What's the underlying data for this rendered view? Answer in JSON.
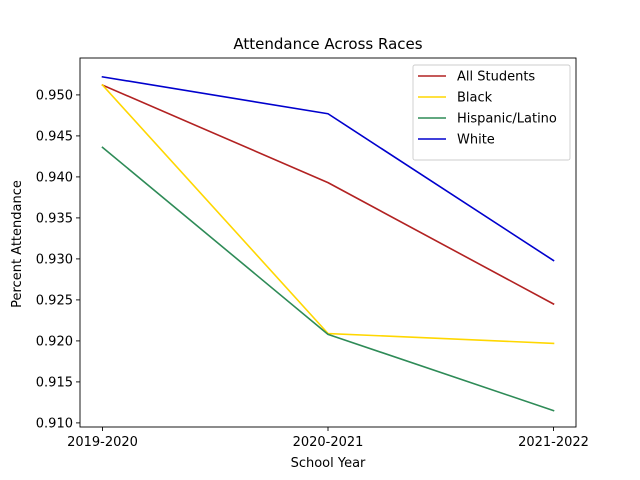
{
  "chart_data": {
    "type": "line",
    "title": "Attendance Across Races",
    "xlabel": "School Year",
    "ylabel": "Percent Attendance",
    "categories": [
      "2019-2020",
      "2020-2021",
      "2021-2022"
    ],
    "ylim": [
      0.9095,
      0.9545
    ],
    "yticks": [
      0.91,
      0.915,
      0.92,
      0.925,
      0.93,
      0.935,
      0.94,
      0.945,
      0.95
    ],
    "ytick_labels": [
      "0.910",
      "0.915",
      "0.920",
      "0.925",
      "0.930",
      "0.935",
      "0.940",
      "0.945",
      "0.950"
    ],
    "grid": false,
    "legend_position": "top-right",
    "series": [
      {
        "name": "All Students",
        "color": "#b22222",
        "values": [
          0.9512,
          0.9393,
          0.9245
        ]
      },
      {
        "name": "Black",
        "color": "#ffd700",
        "values": [
          0.9512,
          0.9209,
          0.9197
        ]
      },
      {
        "name": "Hispanic/Latino",
        "color": "#2e8b57",
        "values": [
          0.9436,
          0.9208,
          0.9115
        ]
      },
      {
        "name": "White",
        "color": "#0000cd",
        "values": [
          0.9522,
          0.9477,
          0.9298
        ]
      }
    ]
  }
}
